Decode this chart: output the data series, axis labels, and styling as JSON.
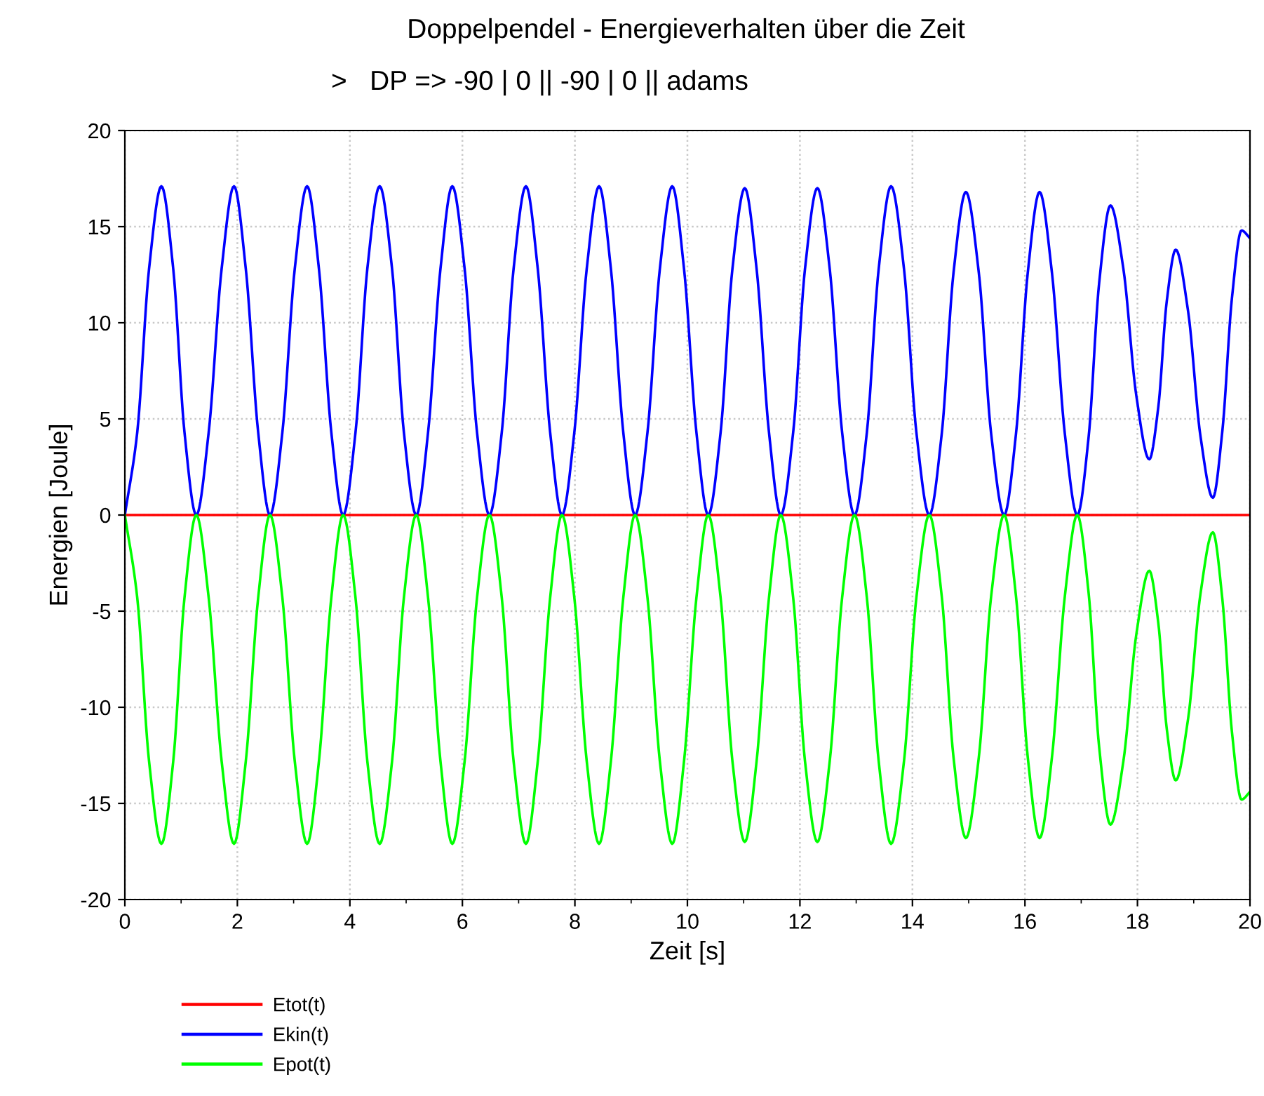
{
  "chart_data": {
    "type": "line",
    "title": "Doppelpendel - Energieverhalten über die Zeit",
    "subtitle": ">   DP => -90 | 0 || -90 | 0 || adams",
    "xlabel": "Zeit [s]",
    "ylabel": "Energien [Joule]",
    "xlim": [
      0,
      20
    ],
    "ylim": [
      -20,
      20
    ],
    "xticks": [
      0,
      2,
      4,
      6,
      8,
      10,
      12,
      14,
      16,
      18,
      20
    ],
    "yticks": [
      -20,
      -15,
      -10,
      -5,
      0,
      5,
      10,
      15,
      20
    ],
    "grid": true,
    "legend": "bottom left",
    "marker": "none",
    "line_style": "solid",
    "series": [
      {
        "name": "Etot(t)",
        "color": "#ff0000",
        "x": [
          0,
          20
        ],
        "values": [
          0,
          0
        ]
      },
      {
        "name": "Ekin(t)",
        "color": "#0000ff",
        "x": [
          0,
          0.22,
          0.43,
          0.65,
          0.86,
          1.06,
          1.27,
          1.49,
          1.72,
          1.94,
          2.15,
          2.37,
          2.58,
          2.8,
          3.02,
          3.24,
          3.45,
          3.67,
          3.88,
          4.1,
          4.31,
          4.53,
          4.75,
          4.96,
          5.18,
          5.39,
          5.61,
          5.82,
          6.04,
          6.26,
          6.48,
          6.7,
          6.91,
          7.13,
          7.34,
          7.56,
          7.77,
          7.99,
          8.21,
          8.43,
          8.64,
          8.86,
          9.07,
          9.29,
          9.51,
          9.73,
          9.94,
          10.16,
          10.37,
          10.59,
          10.8,
          11.02,
          11.23,
          11.45,
          11.66,
          11.88,
          12.09,
          12.31,
          12.53,
          12.75,
          12.97,
          13.19,
          13.4,
          13.62,
          13.85,
          14.07,
          14.3,
          14.52,
          14.73,
          14.95,
          15.18,
          15.4,
          15.63,
          15.84,
          16.05,
          16.26,
          16.48,
          16.71,
          16.93,
          17.13,
          17.32,
          17.52,
          17.75,
          17.98,
          18.21,
          18.37,
          18.52,
          18.68,
          18.9,
          19.12,
          19.34,
          19.51,
          19.68,
          19.85,
          20
        ],
        "values": [
          0,
          4.3,
          12.8,
          17.1,
          12.8,
          4.3,
          0,
          4.3,
          12.8,
          17.1,
          12.8,
          4.3,
          0,
          4.3,
          12.8,
          17.1,
          12.8,
          4.3,
          0,
          4.3,
          12.8,
          17.1,
          12.8,
          4.3,
          0,
          4.3,
          12.8,
          17.1,
          12.8,
          4.3,
          0,
          4.3,
          12.8,
          17.1,
          12.8,
          4.3,
          0,
          4.3,
          12.8,
          17.1,
          12.8,
          4.3,
          0,
          4.3,
          12.8,
          17.1,
          12.8,
          4.3,
          0,
          4.3,
          12.8,
          17.0,
          12.8,
          4.3,
          0,
          4.3,
          12.8,
          17.0,
          12.8,
          4.3,
          0,
          4.3,
          12.8,
          17.1,
          12.8,
          4.3,
          0,
          4.2,
          12.6,
          16.8,
          12.6,
          4.2,
          0,
          4.2,
          12.6,
          16.8,
          12.6,
          4.2,
          0,
          4.0,
          12.1,
          16.1,
          12.8,
          6.2,
          2.9,
          5.6,
          11.1,
          13.8,
          10.6,
          4.1,
          0.9,
          4.4,
          11.3,
          14.8,
          14.4
        ]
      },
      {
        "name": "Epot(t)",
        "color": "#00ff00",
        "x": [
          0,
          0.22,
          0.43,
          0.65,
          0.86,
          1.06,
          1.27,
          1.49,
          1.72,
          1.94,
          2.15,
          2.37,
          2.58,
          2.8,
          3.02,
          3.24,
          3.45,
          3.67,
          3.88,
          4.1,
          4.31,
          4.53,
          4.75,
          4.96,
          5.18,
          5.39,
          5.61,
          5.82,
          6.04,
          6.26,
          6.48,
          6.7,
          6.91,
          7.13,
          7.34,
          7.56,
          7.77,
          7.99,
          8.21,
          8.43,
          8.64,
          8.86,
          9.07,
          9.29,
          9.51,
          9.73,
          9.94,
          10.16,
          10.37,
          10.59,
          10.8,
          11.02,
          11.23,
          11.45,
          11.66,
          11.88,
          12.09,
          12.31,
          12.53,
          12.75,
          12.97,
          13.19,
          13.4,
          13.62,
          13.85,
          14.07,
          14.3,
          14.52,
          14.73,
          14.95,
          15.18,
          15.4,
          15.63,
          15.84,
          16.05,
          16.26,
          16.48,
          16.71,
          16.93,
          17.13,
          17.32,
          17.52,
          17.75,
          17.98,
          18.21,
          18.37,
          18.52,
          18.68,
          18.9,
          19.12,
          19.34,
          19.51,
          19.68,
          19.85,
          20
        ],
        "values": [
          0,
          -4.3,
          -12.8,
          -17.1,
          -12.8,
          -4.3,
          0,
          -4.3,
          -12.8,
          -17.1,
          -12.8,
          -4.3,
          0,
          -4.3,
          -12.8,
          -17.1,
          -12.8,
          -4.3,
          0,
          -4.3,
          -12.8,
          -17.1,
          -12.8,
          -4.3,
          0,
          -4.3,
          -12.8,
          -17.1,
          -12.8,
          -4.3,
          0,
          -4.3,
          -12.8,
          -17.1,
          -12.8,
          -4.3,
          0,
          -4.3,
          -12.8,
          -17.1,
          -12.8,
          -4.3,
          0,
          -4.3,
          -12.8,
          -17.1,
          -12.8,
          -4.3,
          0,
          -4.3,
          -12.8,
          -17.0,
          -12.8,
          -4.3,
          0,
          -4.3,
          -12.8,
          -17.0,
          -12.8,
          -4.3,
          0,
          -4.3,
          -12.8,
          -17.1,
          -12.8,
          -4.3,
          0,
          -4.2,
          -12.6,
          -16.8,
          -12.6,
          -4.2,
          0,
          -4.2,
          -12.6,
          -16.8,
          -12.6,
          -4.2,
          0,
          -4.0,
          -12.1,
          -16.1,
          -12.8,
          -6.2,
          -2.9,
          -5.6,
          -11.1,
          -13.8,
          -10.6,
          -4.1,
          -0.9,
          -4.4,
          -11.3,
          -14.8,
          -14.4
        ]
      }
    ]
  }
}
